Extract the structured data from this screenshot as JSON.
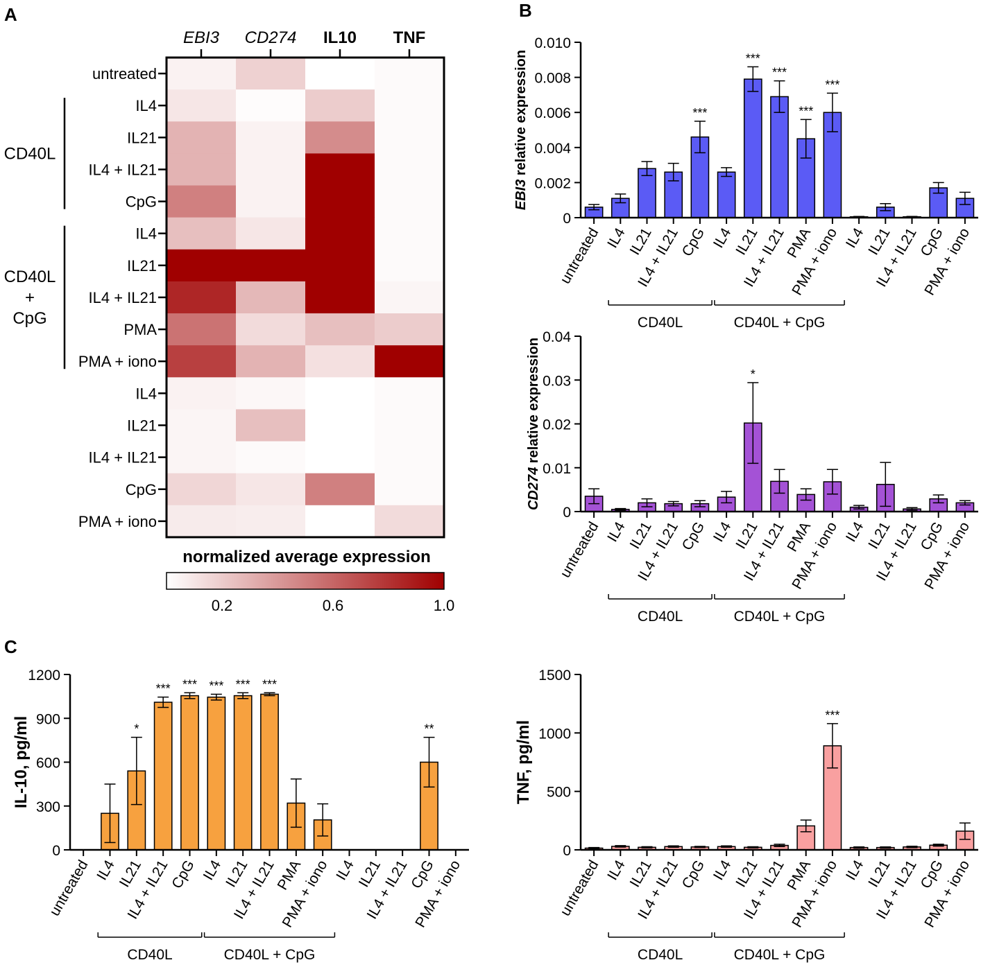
{
  "panels": {
    "A": "A",
    "B": "B",
    "C": "C"
  },
  "heatmap": {
    "columns": [
      {
        "label": "EBI3",
        "style": "italic"
      },
      {
        "label": "CD274",
        "style": "italic"
      },
      {
        "label": "IL10",
        "style": "bold"
      },
      {
        "label": "TNF",
        "style": "bold"
      }
    ],
    "rows": [
      "untreated",
      "IL4",
      "IL21",
      "IL4 + IL21",
      "CpG",
      "IL4",
      "IL21",
      "IL4 + IL21",
      "PMA",
      "PMA + iono",
      "IL4",
      "IL21",
      "IL4 + IL21",
      "CpG",
      "PMA + iono"
    ],
    "group_labels": [
      {
        "lines": [
          "CD40L"
        ],
        "rows": [
          1,
          4
        ]
      },
      {
        "lines": [
          "CD40L",
          "+",
          "CpG"
        ],
        "rows": [
          5,
          9
        ]
      }
    ],
    "values": [
      [
        0.05,
        0.18,
        0.0,
        0.02
      ],
      [
        0.1,
        0.01,
        0.2,
        0.02
      ],
      [
        0.3,
        0.05,
        0.45,
        0.02
      ],
      [
        0.3,
        0.05,
        1.0,
        0.02
      ],
      [
        0.5,
        0.05,
        1.0,
        0.02
      ],
      [
        0.25,
        0.1,
        1.0,
        0.02
      ],
      [
        1.0,
        1.0,
        1.0,
        0.02
      ],
      [
        0.85,
        0.28,
        1.0,
        0.04
      ],
      [
        0.55,
        0.14,
        0.25,
        0.2
      ],
      [
        0.75,
        0.3,
        0.12,
        1.0
      ],
      [
        0.05,
        0.03,
        0.0,
        0.02
      ],
      [
        0.04,
        0.25,
        0.0,
        0.02
      ],
      [
        0.04,
        0.02,
        0.0,
        0.02
      ],
      [
        0.16,
        0.1,
        0.5,
        0.02
      ],
      [
        0.08,
        0.07,
        0.0,
        0.14
      ]
    ],
    "colorbar": {
      "title": "normalized average expression",
      "ticks": [
        "0.2",
        "0.6",
        "1.0"
      ],
      "tick_values": [
        0.2,
        0.6,
        1.0
      ],
      "low_color": "#ffffff",
      "high_color": "#a00000"
    }
  },
  "chart_data": [
    {
      "type": "bar",
      "name": "EBI3",
      "ylabel_italic": "EBI3",
      "ylabel_rest": " relative expression",
      "ylim": [
        0,
        0.01
      ],
      "yticks": [
        "0",
        "0.002",
        "0.004",
        "0.006",
        "0.008",
        "0.010"
      ],
      "ytick_values": [
        0,
        0.002,
        0.004,
        0.006,
        0.008,
        0.01
      ],
      "color": "#5b5bf5",
      "categories": [
        "untreated",
        "IL4",
        "IL21",
        "IL4 + IL21",
        "CpG",
        "IL4",
        "IL21",
        "IL4 + IL21",
        "PMA",
        "PMA + iono",
        "IL4",
        "IL21",
        "IL4 + IL21",
        "CpG",
        "PMA + iono"
      ],
      "values": [
        0.0006,
        0.0011,
        0.0028,
        0.0026,
        0.0046,
        0.0026,
        0.0079,
        0.0069,
        0.0045,
        0.006,
        5e-05,
        0.0006,
        5e-05,
        0.0017,
        0.0011
      ],
      "errors": [
        0.00015,
        0.00025,
        0.0004,
        0.0005,
        0.0009,
        0.00025,
        0.0007,
        0.0009,
        0.0011,
        0.0011,
        2e-05,
        0.0002,
        2e-05,
        0.0003,
        0.00035
      ],
      "significance": [
        "",
        "",
        "",
        "",
        "***",
        "",
        "***",
        "***",
        "***",
        "***",
        "",
        "",
        "",
        "",
        ""
      ],
      "groups": [
        {
          "label": "CD40L",
          "from": 1,
          "to": 4
        },
        {
          "label": "CD40L + CpG",
          "from": 5,
          "to": 9
        }
      ]
    },
    {
      "type": "bar",
      "name": "CD274",
      "ylabel_italic": "CD274",
      "ylabel_rest": " relative expression",
      "ylim": [
        0,
        0.04
      ],
      "yticks": [
        "0",
        "0.01",
        "0.02",
        "0.03",
        "0.04"
      ],
      "ytick_values": [
        0,
        0.01,
        0.02,
        0.03,
        0.04
      ],
      "color": "#a452d6",
      "categories": [
        "untreated",
        "IL4",
        "IL21",
        "IL4 + IL21",
        "CpG",
        "IL4",
        "IL21",
        "IL4 + IL21",
        "PMA",
        "PMA + iono",
        "IL4",
        "IL21",
        "IL4 + IL21",
        "CpG",
        "PMA + iono"
      ],
      "values": [
        0.0035,
        0.0005,
        0.002,
        0.0018,
        0.0018,
        0.0033,
        0.0202,
        0.0069,
        0.0039,
        0.0068,
        0.001,
        0.0062,
        0.0006,
        0.0029,
        0.002
      ],
      "errors": [
        0.0017,
        0.0002,
        0.0009,
        0.0005,
        0.0007,
        0.0013,
        0.0092,
        0.0027,
        0.0013,
        0.0028,
        0.0004,
        0.005,
        0.0003,
        0.0009,
        0.0005
      ],
      "significance": [
        "",
        "",
        "",
        "",
        "",
        "",
        "*",
        "",
        "",
        "",
        "",
        "",
        "",
        "",
        ""
      ],
      "groups": [
        {
          "label": "CD40L",
          "from": 1,
          "to": 4
        },
        {
          "label": "CD40L + CpG",
          "from": 5,
          "to": 9
        }
      ]
    },
    {
      "type": "bar",
      "name": "IL-10",
      "ylabel_italic": "",
      "ylabel_rest": "IL-10, pg/ml",
      "ylim": [
        0,
        1200
      ],
      "yticks": [
        "0",
        "300",
        "600",
        "900",
        "1200"
      ],
      "ytick_values": [
        0,
        300,
        600,
        900,
        1200
      ],
      "color": "#f7a13f",
      "categories": [
        "untreated",
        "IL4",
        "IL21",
        "IL4 + IL21",
        "CpG",
        "IL4",
        "IL21",
        "IL4 + IL21",
        "PMA",
        "PMA + iono",
        "IL4",
        "IL21",
        "IL4 + IL21",
        "CpG",
        "PMA + iono"
      ],
      "values": [
        0,
        250,
        540,
        1010,
        1055,
        1045,
        1055,
        1065,
        320,
        205,
        0,
        0,
        0,
        600,
        0
      ],
      "errors": [
        0,
        200,
        230,
        35,
        20,
        20,
        20,
        10,
        165,
        110,
        0,
        0,
        0,
        170,
        0
      ],
      "significance": [
        "",
        "",
        "*",
        "***",
        "***",
        "***",
        "***",
        "***",
        "",
        "",
        "",
        "",
        "",
        "**",
        ""
      ],
      "groups": [
        {
          "label": "CD40L",
          "from": 1,
          "to": 4
        },
        {
          "label": "CD40L + CpG",
          "from": 5,
          "to": 9
        }
      ]
    },
    {
      "type": "bar",
      "name": "TNF",
      "ylabel_italic": "",
      "ylabel_rest": "TNF, pg/ml",
      "ylim": [
        0,
        1500
      ],
      "yticks": [
        "0",
        "500",
        "1000",
        "1500"
      ],
      "ytick_values": [
        0,
        500,
        1000,
        1500
      ],
      "color": "#f9a0a0",
      "categories": [
        "untreated",
        "IL4",
        "IL21",
        "IL4 + IL21",
        "CpG",
        "IL4",
        "IL21",
        "IL4 + IL21",
        "PMA",
        "PMA + iono",
        "IL4",
        "IL21",
        "IL4 + IL21",
        "CpG",
        "PMA + iono"
      ],
      "values": [
        15,
        30,
        22,
        28,
        25,
        28,
        22,
        38,
        205,
        890,
        20,
        20,
        25,
        40,
        160
      ],
      "errors": [
        5,
        6,
        5,
        6,
        5,
        6,
        5,
        10,
        50,
        190,
        5,
        5,
        6,
        8,
        70
      ],
      "significance": [
        "",
        "",
        "",
        "",
        "",
        "",
        "",
        "",
        "",
        "***",
        "",
        "",
        "",
        "",
        ""
      ],
      "groups": [
        {
          "label": "CD40L",
          "from": 1,
          "to": 4
        },
        {
          "label": "CD40L + CpG",
          "from": 5,
          "to": 9
        }
      ]
    }
  ]
}
